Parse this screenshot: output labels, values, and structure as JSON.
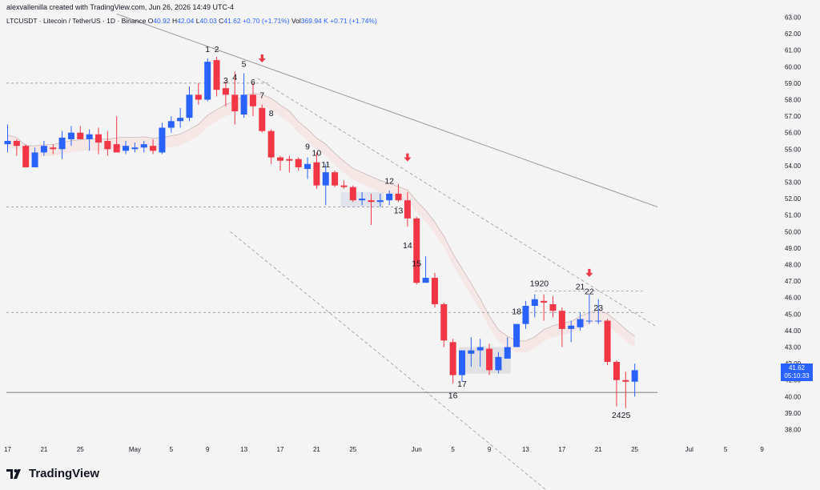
{
  "attribution": "alexvallenilla created with TradingView.com, Jun 26, 2026 14:49 UTC-4",
  "legend": {
    "symbol": "LTCUSDT · Litecoin / TetherUS · 1D · Binance",
    "o_label": "O",
    "o": "40.92",
    "h_label": "H",
    "h": "42.04",
    "l_label": "L",
    "l": "40.03",
    "c_label": "C",
    "c": "41.62",
    "change": "+0.70 (+1.71%)",
    "vol_label": "Vol",
    "vol": "369.94 K",
    "vol_change": "+0.71 (+1.74%)"
  },
  "brand": "TradingView",
  "price_tag": {
    "price": "41.62",
    "countdown": "05:10:33"
  },
  "colors": {
    "up": "#2962ff",
    "down": "#f23645",
    "background": "#f4f4f4",
    "grid_text": "#131722"
  },
  "chart_data": {
    "type": "candlestick",
    "ylim": [
      37,
      63
    ],
    "y_ticks": [
      "38.00",
      "39.00",
      "40.00",
      "41.00",
      "42.00",
      "43.00",
      "44.00",
      "45.00",
      "46.00",
      "47.00",
      "48.00",
      "49.00",
      "50.00",
      "51.00",
      "52.00",
      "53.00",
      "54.00",
      "55.00",
      "56.00",
      "57.00",
      "58.00",
      "59.00",
      "60.00",
      "61.00",
      "62.00",
      "63.00"
    ],
    "x_ticks": [
      {
        "label": "17",
        "day": 0
      },
      {
        "label": "21",
        "day": 4
      },
      {
        "label": "25",
        "day": 8
      },
      {
        "label": "May",
        "day": 14
      },
      {
        "label": "5",
        "day": 18
      },
      {
        "label": "9",
        "day": 22
      },
      {
        "label": "13",
        "day": 26
      },
      {
        "label": "17",
        "day": 30
      },
      {
        "label": "21",
        "day": 34
      },
      {
        "label": "25",
        "day": 38
      },
      {
        "label": "Jun",
        "day": 45
      },
      {
        "label": "5",
        "day": 49
      },
      {
        "label": "9",
        "day": 53
      },
      {
        "label": "13",
        "day": 57
      },
      {
        "label": "17",
        "day": 61
      },
      {
        "label": "21",
        "day": 65
      },
      {
        "label": "25",
        "day": 69
      },
      {
        "label": "Jul",
        "day": 75
      },
      {
        "label": "5",
        "day": 79
      },
      {
        "label": "9",
        "day": 83
      }
    ],
    "candles": [
      {
        "o": 55.3,
        "h": 56.5,
        "l": 54.8,
        "c": 55.5
      },
      {
        "o": 55.5,
        "h": 55.6,
        "l": 54.6,
        "c": 55.2
      },
      {
        "o": 55.2,
        "h": 55.3,
        "l": 53.9,
        "c": 53.9
      },
      {
        "o": 53.9,
        "h": 55.1,
        "l": 53.9,
        "c": 54.8
      },
      {
        "o": 54.8,
        "h": 55.5,
        "l": 54.6,
        "c": 55.2
      },
      {
        "o": 55.1,
        "h": 55.3,
        "l": 54.7,
        "c": 55.0
      },
      {
        "o": 55.0,
        "h": 56.1,
        "l": 54.4,
        "c": 55.7
      },
      {
        "o": 55.6,
        "h": 56.4,
        "l": 55.2,
        "c": 56.0
      },
      {
        "o": 56.0,
        "h": 56.4,
        "l": 55.7,
        "c": 55.6
      },
      {
        "o": 55.6,
        "h": 56.2,
        "l": 54.9,
        "c": 55.9
      },
      {
        "o": 55.9,
        "h": 56.3,
        "l": 54.7,
        "c": 55.4
      },
      {
        "o": 55.5,
        "h": 56.1,
        "l": 54.6,
        "c": 55.0
      },
      {
        "o": 55.3,
        "h": 57.0,
        "l": 54.9,
        "c": 54.8
      },
      {
        "o": 54.9,
        "h": 55.5,
        "l": 54.7,
        "c": 55.2
      },
      {
        "o": 55.0,
        "h": 55.4,
        "l": 54.8,
        "c": 55.1
      },
      {
        "o": 55.1,
        "h": 55.5,
        "l": 54.8,
        "c": 55.3
      },
      {
        "o": 55.2,
        "h": 55.6,
        "l": 54.7,
        "c": 54.9
      },
      {
        "o": 54.8,
        "h": 56.6,
        "l": 54.7,
        "c": 56.3
      },
      {
        "o": 56.3,
        "h": 57.0,
        "l": 56.0,
        "c": 56.7
      },
      {
        "o": 56.7,
        "h": 57.5,
        "l": 56.3,
        "c": 56.9
      },
      {
        "o": 56.9,
        "h": 58.8,
        "l": 56.7,
        "c": 58.3
      },
      {
        "o": 58.3,
        "h": 59.0,
        "l": 57.7,
        "c": 58.0
      },
      {
        "o": 58.0,
        "h": 60.5,
        "l": 57.9,
        "c": 60.3
      },
      {
        "o": 60.4,
        "h": 60.6,
        "l": 58.2,
        "c": 58.6
      },
      {
        "o": 58.7,
        "h": 59.1,
        "l": 57.6,
        "c": 58.3
      },
      {
        "o": 58.3,
        "h": 59.7,
        "l": 56.5,
        "c": 57.3
      },
      {
        "o": 57.1,
        "h": 59.6,
        "l": 56.9,
        "c": 58.3
      },
      {
        "o": 58.3,
        "h": 59.0,
        "l": 57.0,
        "c": 57.6
      },
      {
        "o": 57.5,
        "h": 57.7,
        "l": 56.0,
        "c": 56.1
      },
      {
        "o": 56.1,
        "h": 56.2,
        "l": 54.1,
        "c": 54.5
      },
      {
        "o": 54.5,
        "h": 54.6,
        "l": 53.7,
        "c": 54.3
      },
      {
        "o": 54.4,
        "h": 54.6,
        "l": 53.6,
        "c": 54.3
      },
      {
        "o": 54.4,
        "h": 54.5,
        "l": 53.7,
        "c": 53.9
      },
      {
        "o": 53.8,
        "h": 54.5,
        "l": 53.2,
        "c": 54.1
      },
      {
        "o": 54.2,
        "h": 54.8,
        "l": 52.6,
        "c": 52.8
      },
      {
        "o": 52.8,
        "h": 54.1,
        "l": 51.6,
        "c": 53.6
      },
      {
        "o": 53.6,
        "h": 53.7,
        "l": 52.7,
        "c": 52.8
      },
      {
        "o": 52.8,
        "h": 53.1,
        "l": 52.6,
        "c": 52.7
      },
      {
        "o": 52.7,
        "h": 52.8,
        "l": 51.8,
        "c": 51.9
      },
      {
        "o": 51.9,
        "h": 52.4,
        "l": 51.6,
        "c": 52.0
      },
      {
        "o": 51.9,
        "h": 52.3,
        "l": 50.4,
        "c": 51.8
      },
      {
        "o": 51.8,
        "h": 52.3,
        "l": 51.5,
        "c": 51.9
      },
      {
        "o": 51.9,
        "h": 52.5,
        "l": 51.6,
        "c": 52.3
      },
      {
        "o": 52.3,
        "h": 52.9,
        "l": 51.8,
        "c": 51.9
      },
      {
        "o": 51.9,
        "h": 52.4,
        "l": 50.3,
        "c": 50.8
      },
      {
        "o": 50.8,
        "h": 50.9,
        "l": 46.8,
        "c": 46.9
      },
      {
        "o": 46.9,
        "h": 48.5,
        "l": 46.9,
        "c": 47.2
      },
      {
        "o": 47.2,
        "h": 47.5,
        "l": 45.4,
        "c": 45.6
      },
      {
        "o": 45.6,
        "h": 45.7,
        "l": 43.0,
        "c": 43.4
      },
      {
        "o": 43.3,
        "h": 43.5,
        "l": 40.8,
        "c": 41.3
      },
      {
        "o": 41.3,
        "h": 42.8,
        "l": 40.9,
        "c": 42.8
      },
      {
        "o": 42.6,
        "h": 43.6,
        "l": 41.8,
        "c": 42.8
      },
      {
        "o": 42.8,
        "h": 43.5,
        "l": 41.8,
        "c": 43.0
      },
      {
        "o": 42.9,
        "h": 43.2,
        "l": 41.3,
        "c": 41.6
      },
      {
        "o": 41.6,
        "h": 42.7,
        "l": 41.4,
        "c": 42.4
      },
      {
        "o": 42.3,
        "h": 43.6,
        "l": 42.3,
        "c": 43.0
      },
      {
        "o": 43.0,
        "h": 44.4,
        "l": 43.0,
        "c": 44.4
      },
      {
        "o": 44.4,
        "h": 45.8,
        "l": 44.1,
        "c": 45.5
      },
      {
        "o": 45.5,
        "h": 46.2,
        "l": 44.8,
        "c": 45.9
      },
      {
        "o": 45.8,
        "h": 46.2,
        "l": 44.6,
        "c": 45.7
      },
      {
        "o": 45.6,
        "h": 46.1,
        "l": 44.8,
        "c": 45.2
      },
      {
        "o": 45.2,
        "h": 45.4,
        "l": 43.0,
        "c": 44.1
      },
      {
        "o": 44.1,
        "h": 44.6,
        "l": 43.3,
        "c": 44.3
      },
      {
        "o": 44.2,
        "h": 45.1,
        "l": 44.0,
        "c": 44.7
      },
      {
        "o": 44.6,
        "h": 46.2,
        "l": 44.4,
        "c": 44.6
      },
      {
        "o": 44.6,
        "h": 45.9,
        "l": 44.4,
        "c": 44.6
      },
      {
        "o": 44.6,
        "h": 44.7,
        "l": 41.9,
        "c": 42.1
      },
      {
        "o": 42.1,
        "h": 42.2,
        "l": 39.4,
        "c": 41.0
      },
      {
        "o": 41.0,
        "h": 41.5,
        "l": 39.3,
        "c": 40.9
      },
      {
        "o": 40.9,
        "h": 42.0,
        "l": 40.0,
        "c": 41.6
      }
    ],
    "wave_labels": [
      {
        "text": "1",
        "day": 22,
        "price": 60.9
      },
      {
        "text": "2",
        "day": 23,
        "price": 60.9
      },
      {
        "text": "3",
        "day": 24,
        "price": 59.0
      },
      {
        "text": "4",
        "day": 25,
        "price": 59.2
      },
      {
        "text": "5",
        "day": 26,
        "price": 60.0
      },
      {
        "text": "6",
        "day": 27,
        "price": 58.9
      },
      {
        "text": "7",
        "day": 28,
        "price": 58.1
      },
      {
        "text": "8",
        "day": 29,
        "price": 57.0
      },
      {
        "text": "9",
        "day": 33,
        "price": 55.0
      },
      {
        "text": "10",
        "day": 34,
        "price": 54.6
      },
      {
        "text": "11",
        "day": 35,
        "price": 53.9
      },
      {
        "text": "12",
        "day": 42,
        "price": 52.9
      },
      {
        "text": "13",
        "day": 43,
        "price": 51.1
      },
      {
        "text": "14",
        "day": 44,
        "price": 49.0
      },
      {
        "text": "15",
        "day": 45,
        "price": 47.9
      },
      {
        "text": "16",
        "day": 49,
        "price": 39.9
      },
      {
        "text": "17",
        "day": 50,
        "price": 40.6
      },
      {
        "text": "18",
        "day": 56,
        "price": 45.0
      },
      {
        "text": "1920",
        "day": 58.5,
        "price": 46.7
      },
      {
        "text": "21",
        "day": 63,
        "price": 46.5
      },
      {
        "text": "22",
        "day": 64,
        "price": 46.2
      },
      {
        "text": "23",
        "day": 65,
        "price": 45.2
      },
      {
        "text": "2425",
        "day": 67.5,
        "price": 38.7
      }
    ]
  }
}
